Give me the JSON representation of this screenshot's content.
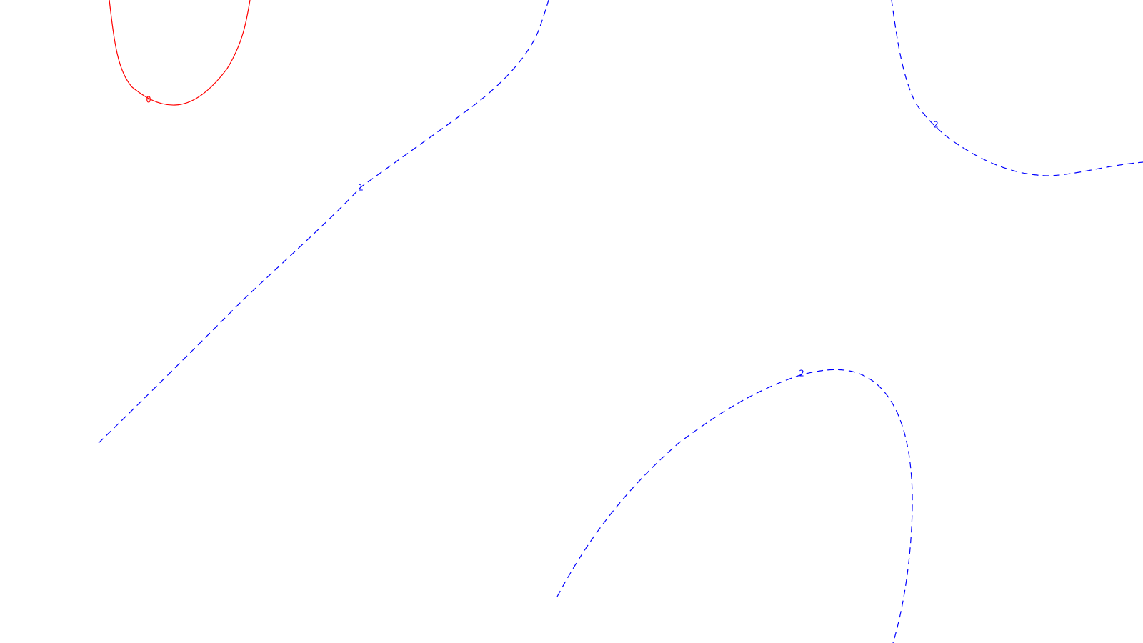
{
  "map": {
    "background": "#ffffff",
    "contours": [
      {
        "id": "contour-0",
        "level_label": "0",
        "color": "#ff0000",
        "style": "solid"
      },
      {
        "id": "contour-1",
        "level_label": "1",
        "color": "#0000ff",
        "style": "dashed"
      },
      {
        "id": "contour-2a",
        "level_label": "2",
        "color": "#0000ff",
        "style": "dashed"
      },
      {
        "id": "contour-2b",
        "level_label": "2",
        "color": "#0000ff",
        "style": "dashed"
      }
    ]
  }
}
